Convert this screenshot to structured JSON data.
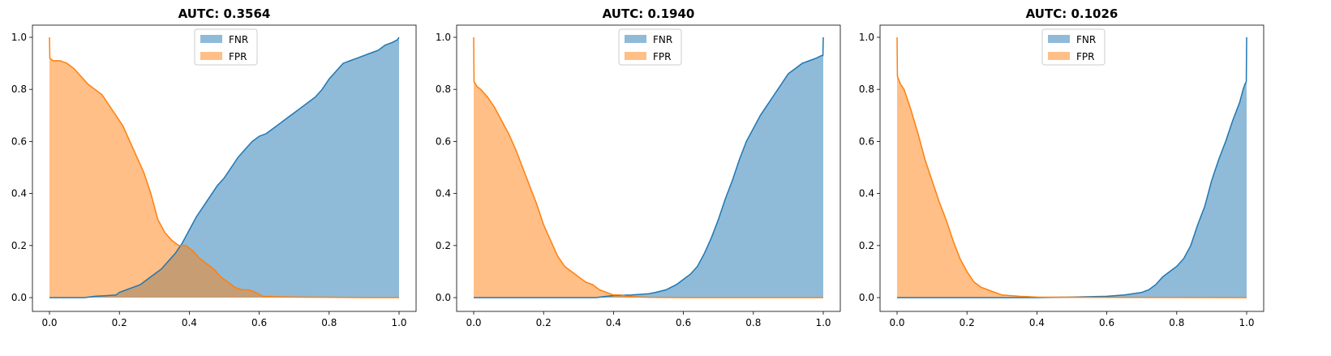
{
  "colors": {
    "fnr": "#1f77b4",
    "fpr": "#ff7f0e"
  },
  "chart_data": [
    {
      "type": "area",
      "title": "AUTC: 0.3564",
      "xlim": [
        0,
        1
      ],
      "ylim": [
        0,
        1
      ],
      "xticks": [
        "0.0",
        "0.2",
        "0.4",
        "0.6",
        "0.8",
        "1.0"
      ],
      "yticks": [
        "0.0",
        "0.2",
        "0.4",
        "0.6",
        "0.8",
        "1.0"
      ],
      "legend": {
        "placement": "upper center",
        "entries": [
          "FNR",
          "FPR"
        ]
      },
      "series": [
        {
          "name": "FNR",
          "x": [
            0,
            0.1,
            0.13,
            0.17,
            0.19,
            0.2,
            0.22,
            0.24,
            0.26,
            0.28,
            0.3,
            0.32,
            0.34,
            0.36,
            0.38,
            0.4,
            0.42,
            0.44,
            0.46,
            0.48,
            0.5,
            0.52,
            0.54,
            0.56,
            0.58,
            0.6,
            0.62,
            0.64,
            0.66,
            0.68,
            0.7,
            0.72,
            0.74,
            0.76,
            0.78,
            0.8,
            0.82,
            0.84,
            0.86,
            0.88,
            0.9,
            0.92,
            0.94,
            0.96,
            0.98,
            0.995,
            1.0
          ],
          "y": [
            0,
            0,
            0.005,
            0.008,
            0.01,
            0.02,
            0.03,
            0.04,
            0.05,
            0.07,
            0.09,
            0.11,
            0.14,
            0.17,
            0.21,
            0.26,
            0.31,
            0.35,
            0.39,
            0.43,
            0.46,
            0.5,
            0.54,
            0.57,
            0.6,
            0.62,
            0.63,
            0.65,
            0.67,
            0.69,
            0.71,
            0.73,
            0.75,
            0.77,
            0.8,
            0.84,
            0.87,
            0.9,
            0.91,
            0.92,
            0.93,
            0.94,
            0.95,
            0.97,
            0.98,
            0.99,
            1.0
          ]
        },
        {
          "name": "FPR",
          "x": [
            0,
            0.001,
            0.01,
            0.03,
            0.05,
            0.07,
            0.09,
            0.11,
            0.13,
            0.15,
            0.17,
            0.19,
            0.21,
            0.23,
            0.25,
            0.27,
            0.29,
            0.31,
            0.33,
            0.35,
            0.37,
            0.39,
            0.41,
            0.43,
            0.45,
            0.47,
            0.49,
            0.51,
            0.53,
            0.55,
            0.57,
            0.59,
            0.61,
            0.65,
            0.7,
            0.8,
            0.9,
            1.0
          ],
          "y": [
            1.0,
            0.92,
            0.91,
            0.91,
            0.9,
            0.88,
            0.85,
            0.82,
            0.8,
            0.78,
            0.74,
            0.7,
            0.66,
            0.6,
            0.54,
            0.48,
            0.4,
            0.3,
            0.25,
            0.22,
            0.2,
            0.2,
            0.18,
            0.15,
            0.13,
            0.11,
            0.08,
            0.06,
            0.04,
            0.03,
            0.03,
            0.02,
            0.005,
            0.003,
            0.002,
            0.001,
            0,
            0
          ]
        }
      ]
    },
    {
      "type": "area",
      "title": "AUTC: 0.1940",
      "xlim": [
        0,
        1
      ],
      "ylim": [
        0,
        1
      ],
      "xticks": [
        "0.0",
        "0.2",
        "0.4",
        "0.6",
        "0.8",
        "1.0"
      ],
      "yticks": [
        "0.0",
        "0.2",
        "0.4",
        "0.6",
        "0.8",
        "1.0"
      ],
      "legend": {
        "placement": "upper center",
        "entries": [
          "FNR",
          "FPR"
        ]
      },
      "series": [
        {
          "name": "FNR",
          "x": [
            0,
            0.35,
            0.38,
            0.4,
            0.45,
            0.5,
            0.52,
            0.55,
            0.58,
            0.6,
            0.62,
            0.64,
            0.66,
            0.68,
            0.7,
            0.72,
            0.74,
            0.76,
            0.78,
            0.8,
            0.82,
            0.84,
            0.86,
            0.88,
            0.9,
            0.92,
            0.94,
            0.96,
            0.98,
            0.995,
            0.999,
            1.0
          ],
          "y": [
            0,
            0,
            0.005,
            0.008,
            0.01,
            0.015,
            0.02,
            0.03,
            0.05,
            0.07,
            0.09,
            0.12,
            0.17,
            0.23,
            0.3,
            0.38,
            0.45,
            0.53,
            0.6,
            0.65,
            0.7,
            0.74,
            0.78,
            0.82,
            0.86,
            0.88,
            0.9,
            0.91,
            0.92,
            0.93,
            0.93,
            1.0
          ]
        },
        {
          "name": "FPR",
          "x": [
            0,
            0.001,
            0.01,
            0.02,
            0.04,
            0.06,
            0.08,
            0.1,
            0.12,
            0.14,
            0.16,
            0.18,
            0.2,
            0.22,
            0.24,
            0.26,
            0.28,
            0.3,
            0.32,
            0.34,
            0.36,
            0.38,
            0.4,
            0.42,
            0.44,
            0.46,
            0.48,
            0.5,
            0.6,
            1.0
          ],
          "y": [
            1.0,
            0.83,
            0.81,
            0.8,
            0.77,
            0.73,
            0.68,
            0.63,
            0.57,
            0.5,
            0.43,
            0.36,
            0.28,
            0.22,
            0.16,
            0.12,
            0.1,
            0.08,
            0.06,
            0.05,
            0.03,
            0.02,
            0.01,
            0.01,
            0.005,
            0.003,
            0.002,
            0.001,
            0,
            0
          ]
        }
      ]
    },
    {
      "type": "area",
      "title": "AUTC: 0.1026",
      "xlim": [
        0,
        1
      ],
      "ylim": [
        0,
        1
      ],
      "xticks": [
        "0.0",
        "0.2",
        "0.4",
        "0.6",
        "0.8",
        "1.0"
      ],
      "yticks": [
        "0.0",
        "0.2",
        "0.4",
        "0.6",
        "0.8",
        "1.0"
      ],
      "legend": {
        "placement": "upper center",
        "entries": [
          "FNR",
          "FPR"
        ]
      },
      "series": [
        {
          "name": "FNR",
          "x": [
            0,
            0.4,
            0.5,
            0.6,
            0.65,
            0.7,
            0.72,
            0.74,
            0.76,
            0.78,
            0.8,
            0.82,
            0.84,
            0.86,
            0.88,
            0.9,
            0.92,
            0.94,
            0.96,
            0.98,
            0.99,
            0.995,
            0.999,
            1.0
          ],
          "y": [
            0,
            0,
            0.002,
            0.005,
            0.01,
            0.02,
            0.03,
            0.05,
            0.08,
            0.1,
            0.12,
            0.15,
            0.2,
            0.28,
            0.35,
            0.45,
            0.53,
            0.6,
            0.68,
            0.75,
            0.8,
            0.82,
            0.83,
            1.0
          ]
        },
        {
          "name": "FPR",
          "x": [
            0,
            0.001,
            0.01,
            0.02,
            0.04,
            0.06,
            0.08,
            0.1,
            0.12,
            0.14,
            0.16,
            0.18,
            0.2,
            0.22,
            0.24,
            0.26,
            0.28,
            0.3,
            0.32,
            0.35,
            0.4,
            0.5,
            1.0
          ],
          "y": [
            1.0,
            0.85,
            0.82,
            0.8,
            0.72,
            0.63,
            0.53,
            0.45,
            0.37,
            0.3,
            0.22,
            0.15,
            0.1,
            0.06,
            0.04,
            0.03,
            0.02,
            0.01,
            0.008,
            0.005,
            0.002,
            0.001,
            0
          ]
        }
      ]
    }
  ]
}
